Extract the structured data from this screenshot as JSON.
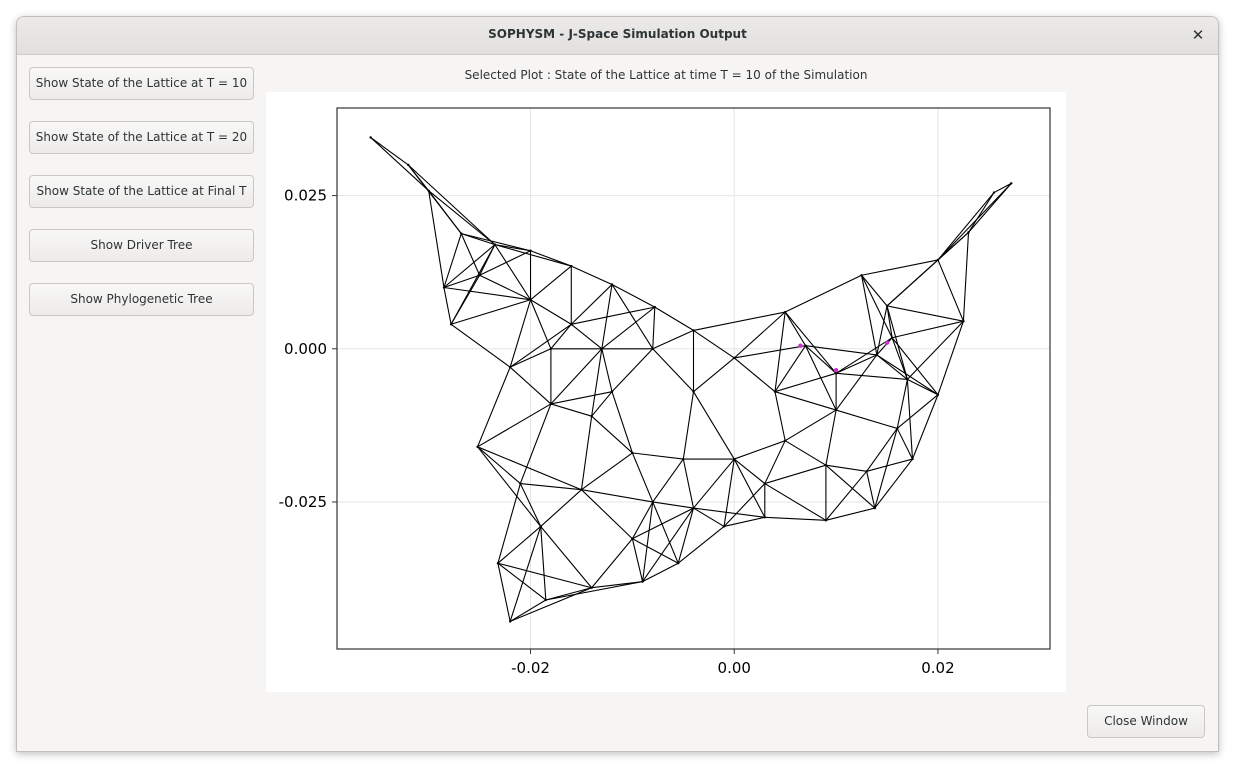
{
  "window": {
    "title": "SOPHYSM - J-Space Simulation Output",
    "close_glyph": "✕"
  },
  "sidebar": {
    "buttons": [
      {
        "label": "Show State of the Lattice at T = 10"
      },
      {
        "label": "Show State of the Lattice at T = 20"
      },
      {
        "label": "Show State of the Lattice at Final  T"
      },
      {
        "label": "Show Driver Tree"
      },
      {
        "label": "Show Phylogenetic Tree"
      }
    ]
  },
  "plot": {
    "caption": "Selected Plot : State of the Lattice at time T = 10 of the Simulation"
  },
  "footer": {
    "close_label": "Close Window"
  },
  "colors": {
    "mesh": "#000000",
    "highlight": "#cc33cc",
    "grid": "#e5e5e5"
  },
  "chart_data": {
    "type": "scatter",
    "title": "",
    "xlabel": "",
    "ylabel": "",
    "xlim": [
      -0.039,
      0.031
    ],
    "ylim": [
      -0.049,
      0.0393
    ],
    "xticks": [
      {
        "value": -0.02,
        "label": "-0.02"
      },
      {
        "value": 0.0,
        "label": "0.00"
      },
      {
        "value": 0.02,
        "label": "0.02"
      }
    ],
    "yticks": [
      {
        "value": 0.025,
        "label": "0.025"
      },
      {
        "value": 0.0,
        "label": "0.000"
      },
      {
        "value": -0.025,
        "label": "-0.025"
      }
    ],
    "grid": true,
    "legend": "none",
    "nodes": [
      [
        -0.0357,
        0.0345
      ],
      [
        -0.032,
        0.03
      ],
      [
        -0.03,
        0.0258
      ],
      [
        -0.0268,
        0.0188
      ],
      [
        -0.0235,
        0.017
      ],
      [
        -0.02,
        0.016
      ],
      [
        -0.016,
        0.0135
      ],
      [
        -0.012,
        0.0105
      ],
      [
        -0.0078,
        0.0068
      ],
      [
        -0.004,
        0.003
      ],
      [
        0.0,
        -0.0015
      ],
      [
        0.007,
        0.0005
      ],
      [
        0.0125,
        0.012
      ],
      [
        0.0155,
        0.0018
      ],
      [
        0.02,
        0.0145
      ],
      [
        0.023,
        0.019
      ],
      [
        0.0255,
        0.0255
      ],
      [
        0.0272,
        0.027
      ],
      [
        0.0225,
        0.0045
      ],
      [
        0.02,
        -0.0075
      ],
      [
        0.0175,
        -0.018
      ],
      [
        0.0138,
        -0.026
      ],
      [
        0.009,
        -0.028
      ],
      [
        0.003,
        -0.0275
      ],
      [
        -0.001,
        -0.029
      ],
      [
        -0.0055,
        -0.035
      ],
      [
        -0.009,
        -0.038
      ],
      [
        -0.014,
        -0.039
      ],
      [
        -0.0185,
        -0.041
      ],
      [
        -0.022,
        -0.0445
      ],
      [
        -0.0232,
        -0.035
      ],
      [
        -0.0252,
        -0.016
      ],
      [
        -0.0278,
        0.004
      ],
      [
        -0.0285,
        0.01
      ],
      [
        -0.02,
        0.008
      ],
      [
        -0.016,
        0.004
      ],
      [
        -0.013,
        0.0
      ],
      [
        -0.008,
        0.0
      ],
      [
        -0.004,
        -0.007
      ],
      [
        0.004,
        -0.007
      ],
      [
        0.01,
        -0.004
      ],
      [
        0.014,
        -0.001
      ],
      [
        0.01,
        -0.01
      ],
      [
        0.016,
        -0.013
      ],
      [
        0.009,
        -0.019
      ],
      [
        0.005,
        -0.015
      ],
      [
        0.0,
        -0.018
      ],
      [
        -0.005,
        -0.018
      ],
      [
        -0.008,
        -0.025
      ],
      [
        -0.01,
        -0.017
      ],
      [
        -0.014,
        -0.011
      ],
      [
        -0.018,
        -0.009
      ],
      [
        -0.022,
        -0.003
      ],
      [
        -0.015,
        -0.023
      ],
      [
        -0.019,
        -0.029
      ],
      [
        -0.021,
        -0.022
      ],
      [
        -0.01,
        -0.031
      ],
      [
        -0.004,
        -0.026
      ],
      [
        0.003,
        -0.022
      ],
      [
        -0.018,
        0.0
      ],
      [
        -0.025,
        0.012
      ],
      [
        0.013,
        -0.02
      ],
      [
        0.017,
        -0.005
      ],
      [
        -0.012,
        -0.007
      ],
      [
        0.005,
        0.006
      ],
      [
        0.015,
        0.007
      ]
    ],
    "highlighted_nodes": [
      [
        0.0065,
        0.0005
      ],
      [
        0.015,
        0.001
      ],
      [
        0.01,
        -0.0035
      ]
    ]
  }
}
